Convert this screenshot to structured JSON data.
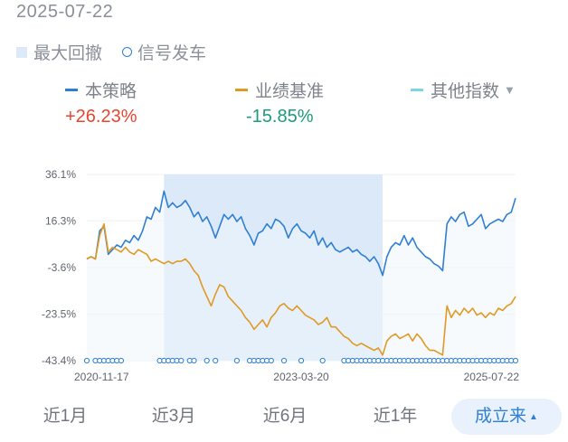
{
  "header": {
    "date": "2025-07-22"
  },
  "legend": {
    "drawdown_label": "最大回撤",
    "signal_label": "信号发车"
  },
  "series_legend": [
    {
      "label": "本策略",
      "color": "#2f7fd4"
    },
    {
      "label": "业绩基准",
      "color": "#e09a24"
    },
    {
      "label": "其他指数",
      "color": "#7fd3e3"
    }
  ],
  "returns": {
    "strategy": "+26.23%",
    "benchmark": "-15.85%"
  },
  "tabs": [
    "近1月",
    "近3月",
    "近6月",
    "近1年",
    "成立来"
  ],
  "colors": {
    "strategy": "#2f7fd4",
    "benchmark": "#e09a24",
    "drawdown_fill": "#dbe9f8",
    "area_fill": "#eef5fc",
    "up": "#e8462f",
    "down": "#1c9c7a"
  },
  "chart_data": {
    "type": "line",
    "y_ticks": [
      "36.1%",
      "16.3%",
      "-3.6%",
      "-23.5%",
      "-43.4%"
    ],
    "y_tick_values": [
      36.1,
      16.3,
      -3.6,
      -23.5,
      -43.4
    ],
    "ylim": [
      -43.4,
      36.1
    ],
    "x_tick_labels": [
      "2020-11-17",
      "2023-03-20",
      "2025-07-22"
    ],
    "xlim": [
      0,
      1
    ],
    "grid": true,
    "max_drawdown_range": [
      0.18,
      0.69
    ],
    "series": [
      {
        "key": "strategy",
        "x": [
          0.0,
          0.01,
          0.02,
          0.03,
          0.04,
          0.05,
          0.06,
          0.07,
          0.08,
          0.09,
          0.1,
          0.11,
          0.12,
          0.13,
          0.14,
          0.15,
          0.16,
          0.17,
          0.18,
          0.19,
          0.2,
          0.21,
          0.22,
          0.23,
          0.24,
          0.25,
          0.26,
          0.27,
          0.28,
          0.29,
          0.3,
          0.31,
          0.32,
          0.33,
          0.34,
          0.35,
          0.36,
          0.37,
          0.38,
          0.39,
          0.4,
          0.41,
          0.42,
          0.43,
          0.44,
          0.45,
          0.46,
          0.47,
          0.48,
          0.49,
          0.5,
          0.51,
          0.52,
          0.53,
          0.54,
          0.55,
          0.56,
          0.57,
          0.58,
          0.59,
          0.6,
          0.61,
          0.62,
          0.63,
          0.64,
          0.65,
          0.66,
          0.67,
          0.68,
          0.69,
          0.7,
          0.71,
          0.72,
          0.73,
          0.74,
          0.75,
          0.76,
          0.77,
          0.78,
          0.79,
          0.8,
          0.81,
          0.82,
          0.83,
          0.84,
          0.85,
          0.86,
          0.87,
          0.88,
          0.89,
          0.9,
          0.91,
          0.92,
          0.93,
          0.94,
          0.95,
          0.96,
          0.97,
          0.98,
          0.99,
          1.0
        ],
        "y": [
          0.0,
          1.0,
          0.0,
          12.0,
          14.0,
          2.0,
          4.0,
          6.0,
          5.0,
          8.0,
          7.0,
          10.0,
          8.0,
          12.0,
          18.0,
          17.0,
          22.0,
          20.0,
          29.0,
          22.0,
          24.0,
          22.0,
          23.0,
          25.0,
          22.0,
          18.0,
          20.0,
          16.0,
          18.0,
          14.0,
          9.0,
          14.0,
          19.0,
          17.0,
          19.0,
          16.0,
          18.0,
          13.0,
          10.0,
          6.0,
          11.0,
          12.0,
          15.0,
          13.0,
          17.0,
          16.0,
          14.0,
          9.0,
          13.0,
          15.0,
          12.0,
          11.0,
          9.0,
          12.0,
          6.0,
          9.0,
          5.0,
          7.0,
          4.0,
          3.0,
          4.0,
          5.0,
          3.0,
          4.0,
          2.0,
          1.0,
          -1.0,
          1.0,
          -2.0,
          -7.0,
          1.0,
          5.0,
          7.0,
          6.0,
          10.0,
          6.0,
          9.0,
          5.0,
          3.0,
          1.0,
          0.0,
          -2.0,
          -3.0,
          -5.0,
          15.0,
          18.0,
          16.0,
          19.0,
          20.0,
          14.0,
          15.0,
          17.0,
          19.0,
          13.0,
          15.0,
          16.0,
          17.0,
          16.0,
          19.0,
          20.0,
          26.0
        ]
      },
      {
        "key": "benchmark",
        "x": [
          0.0,
          0.01,
          0.02,
          0.03,
          0.04,
          0.05,
          0.06,
          0.07,
          0.08,
          0.09,
          0.1,
          0.11,
          0.12,
          0.13,
          0.14,
          0.15,
          0.16,
          0.17,
          0.18,
          0.19,
          0.2,
          0.21,
          0.22,
          0.23,
          0.24,
          0.25,
          0.26,
          0.27,
          0.28,
          0.29,
          0.3,
          0.31,
          0.32,
          0.33,
          0.34,
          0.35,
          0.36,
          0.37,
          0.38,
          0.39,
          0.4,
          0.41,
          0.42,
          0.43,
          0.44,
          0.45,
          0.46,
          0.47,
          0.48,
          0.49,
          0.5,
          0.51,
          0.52,
          0.53,
          0.54,
          0.55,
          0.56,
          0.57,
          0.58,
          0.59,
          0.6,
          0.61,
          0.62,
          0.63,
          0.64,
          0.65,
          0.66,
          0.67,
          0.68,
          0.69,
          0.7,
          0.71,
          0.72,
          0.73,
          0.74,
          0.75,
          0.76,
          0.77,
          0.78,
          0.79,
          0.8,
          0.81,
          0.82,
          0.83,
          0.84,
          0.85,
          0.86,
          0.87,
          0.88,
          0.89,
          0.9,
          0.91,
          0.92,
          0.93,
          0.94,
          0.95,
          0.96,
          0.97,
          0.98,
          0.99,
          1.0
        ],
        "y": [
          0.0,
          1.0,
          0.0,
          10.0,
          15.0,
          3.0,
          5.0,
          4.0,
          3.0,
          5.0,
          3.0,
          2.0,
          4.0,
          3.0,
          2.0,
          -1.0,
          0.0,
          -1.0,
          -2.0,
          -1.0,
          -2.0,
          -1.0,
          -1.0,
          0.0,
          -2.0,
          -5.0,
          -7.0,
          -12.0,
          -16.0,
          -20.0,
          -15.0,
          -11.0,
          -12.0,
          -16.0,
          -18.0,
          -20.0,
          -22.0,
          -25.0,
          -27.0,
          -30.0,
          -28.0,
          -26.0,
          -29.0,
          -25.0,
          -23.0,
          -20.0,
          -19.0,
          -21.0,
          -22.0,
          -20.0,
          -22.0,
          -24.0,
          -25.0,
          -26.0,
          -28.0,
          -27.0,
          -25.0,
          -29.0,
          -29.0,
          -31.0,
          -33.0,
          -34.0,
          -36.0,
          -37.0,
          -36.0,
          -37.0,
          -38.0,
          -39.0,
          -38.0,
          -41.0,
          -35.0,
          -33.0,
          -32.0,
          -34.0,
          -33.0,
          -32.0,
          -35.0,
          -32.0,
          -34.0,
          -37.0,
          -39.0,
          -39.0,
          -40.0,
          -41.0,
          -20.0,
          -25.0,
          -22.0,
          -24.0,
          -21.0,
          -23.0,
          -21.0,
          -24.0,
          -23.0,
          -25.0,
          -23.0,
          -24.0,
          -21.0,
          -22.0,
          -20.0,
          -19.0,
          -16.0
        ]
      }
    ],
    "signal_x": [
      0.0,
      0.02,
      0.03,
      0.04,
      0.05,
      0.06,
      0.07,
      0.08,
      0.17,
      0.18,
      0.19,
      0.2,
      0.21,
      0.22,
      0.24,
      0.25,
      0.28,
      0.3,
      0.35,
      0.38,
      0.39,
      0.4,
      0.41,
      0.42,
      0.43,
      0.46,
      0.5,
      0.55,
      0.6,
      0.61,
      0.62,
      0.63,
      0.64,
      0.65,
      0.66,
      0.67,
      0.68,
      0.69,
      0.7,
      0.71,
      0.72,
      0.73,
      0.74,
      0.75,
      0.76,
      0.77,
      0.78,
      0.79,
      0.8,
      0.81,
      0.82,
      0.83,
      0.84,
      0.85,
      0.86,
      0.87,
      0.88,
      0.89,
      0.9,
      0.91,
      0.92,
      0.93,
      0.94,
      0.95,
      0.96,
      0.97,
      0.98,
      0.99,
      1.0
    ]
  }
}
